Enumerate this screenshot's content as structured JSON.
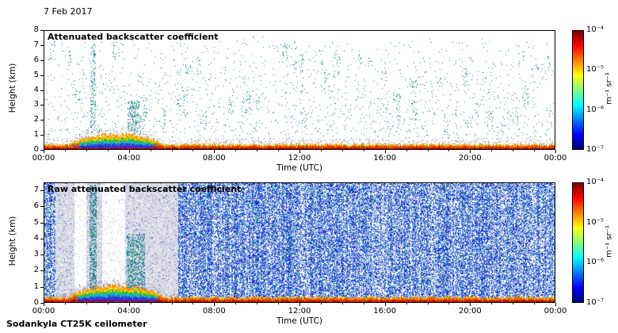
{
  "figure": {
    "date": "7 Feb 2017",
    "footer": "Sodankyla CT25K ceilometer"
  },
  "chart_data": [
    {
      "type": "heatmap",
      "title": "Attenuated backscatter coefficient",
      "xlabel": "Time (UTC)",
      "ylabel": "Height (km)",
      "x_ticks": [
        "00:00",
        "04:00",
        "08:00",
        "12:00",
        "16:00",
        "20:00",
        "00:00"
      ],
      "x_range_hours": [
        0,
        24
      ],
      "y_ticks": [
        0,
        1,
        2,
        3,
        4,
        5,
        6,
        7,
        8
      ],
      "ylim": [
        0,
        8
      ],
      "colorbar": {
        "scale": "log",
        "min": 1e-07,
        "max": 0.0001,
        "tick_labels": [
          "10⁻⁴",
          "10⁻⁵",
          "10⁻⁶",
          "10⁻⁷"
        ],
        "unit": "m⁻¹ sr⁻¹",
        "colormap": "jet"
      },
      "features_text": [
        "Strong surface backscatter layer below ~0.4 km across all 24 h (orange/red)",
        "Dense multicolour plume 01:00-05:30 UTC reaching ~1 km (orange/yellow/green/cyan/blue/purple layers)",
        "Grey speckle fringe just above the surface layer",
        "Sparse teal/green cloud and precipitation echoes scattered up to ~7.5 km",
        "Denser echo column near 02:15 UTC up to 7 km and cluster 04:00-04:40 UTC at 1-3 km"
      ],
      "render": {
        "mode": "top",
        "seed": 42,
        "band": {
          "base_km": 0.3,
          "blob": {
            "t0": 0.045,
            "t1": 0.235,
            "peak_km": 1.0
          }
        },
        "speck_p": 0.012,
        "gray_p": 0.3,
        "streaks": {
          "count": 90,
          "p": 0.1
        },
        "features": [
          {
            "t0": 0.09,
            "t1": 0.1,
            "z0": 0.8,
            "z1": 7.2,
            "p": 0.22
          },
          {
            "t0": 0.162,
            "t1": 0.186,
            "z0": 1.2,
            "z1": 3.3,
            "p": 0.3
          },
          {
            "t0": 0.186,
            "t1": 0.197,
            "z0": 1.2,
            "z1": 2.5,
            "p": 0.15
          }
        ]
      }
    },
    {
      "type": "heatmap",
      "title": "Raw attenuated backscatter coefficient",
      "xlabel": "Time (UTC)",
      "ylabel": "Height (km)",
      "x_ticks": [
        "00:00",
        "04:00",
        "08:00",
        "12:00",
        "16:00",
        "20:00",
        "00:00"
      ],
      "x_range_hours": [
        0,
        24
      ],
      "y_ticks": [
        0,
        1,
        2,
        3,
        4,
        5,
        6,
        7
      ],
      "ylim": [
        0,
        7.5
      ],
      "colorbar": {
        "scale": "log",
        "min": 1e-07,
        "max": 0.0001,
        "tick_labels": [
          "10⁻⁴",
          "10⁻⁵",
          "10⁻⁶",
          "10⁻⁷"
        ],
        "unit": "m⁻¹ sr⁻¹",
        "colormap": "jet"
      },
      "features_text": [
        "Dense blue instrument-noise speckle filling the panel from ~06:00 to 24:00 UTC and at 00:00-00:30",
        "Light grey low-noise interval ~00:30-06:00 UTC with whiter gaps near 01:30 and 02:40-03:45",
        "Echo column near 02:15 UTC up to 7.4 km and cluster 04:00-04:40 UTC below ~4 km",
        "Same strong surface layer and 01:00-05:30 multicolour plume as upper panel"
      ],
      "render": {
        "mode": "raw",
        "seed": 1337,
        "band": {
          "base_km": 0.3,
          "blob": {
            "t0": 0.043,
            "t1": 0.237,
            "peak_km": 1.0
          }
        },
        "gray_p": 0.35,
        "raw": {
          "noise_p": 0.62,
          "noise_left_end": 0.021,
          "clear_end": 0.262,
          "gaps": [
            [
              0.058,
              0.082
            ],
            [
              0.112,
              0.158
            ]
          ],
          "dot_p": 0.05,
          "features": [
            {
              "t0": 0.088,
              "t1": 0.102,
              "z0": 0.4,
              "z1": 7.4,
              "p": 0.45
            },
            {
              "t0": 0.16,
              "t1": 0.196,
              "z0": 0.4,
              "z1": 4.3,
              "p": 0.4
            }
          ]
        }
      }
    }
  ]
}
